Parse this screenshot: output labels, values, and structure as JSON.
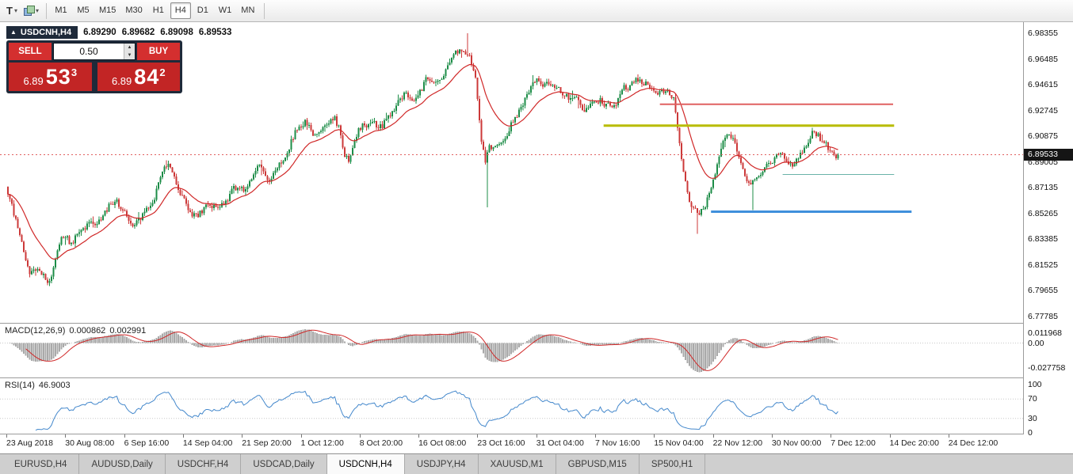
{
  "toolbar": {
    "templates_icon": "T",
    "caret_icon": "▾",
    "timeframes": [
      "M1",
      "M5",
      "M15",
      "M30",
      "H1",
      "H4",
      "D1",
      "W1",
      "MN"
    ],
    "active_timeframe": "H4"
  },
  "chart_header": {
    "collapse_icon": "▲",
    "symbol": "USDCNH,H4",
    "open": "6.89290",
    "high": "6.89682",
    "low": "6.89098",
    "close": "6.89533"
  },
  "trade_panel": {
    "sell_label": "SELL",
    "buy_label": "BUY",
    "volume": "0.50",
    "volume_up_icon": "▲",
    "volume_down_icon": "▼",
    "sell_price": {
      "small": "6.89",
      "big": "53",
      "sup": "3"
    },
    "buy_price": {
      "small": "6.89",
      "big": "84",
      "sup": "2"
    }
  },
  "price_axis": {
    "labels": [
      "6.98355",
      "6.96485",
      "6.94615",
      "6.92745",
      "6.90875",
      "6.89005",
      "6.87135",
      "6.85265",
      "6.83385",
      "6.81525",
      "6.79655",
      "6.77785"
    ],
    "current": "6.89533"
  },
  "macd_panel": {
    "label": "MACD(12,26,9)",
    "value_main": "0.000862",
    "value_signal": "0.002991",
    "axis_labels": [
      "0.011968",
      "0.00",
      "-0.027758"
    ]
  },
  "rsi_panel": {
    "label": "RSI(14)",
    "value": "46.9003",
    "axis_labels": [
      "100",
      "70",
      "30",
      "0"
    ]
  },
  "time_axis": [
    "23 Aug 2018",
    "30 Aug 08:00",
    "6 Sep 16:00",
    "14 Sep 04:00",
    "21 Sep 20:00",
    "1 Oct 12:00",
    "8 Oct 20:00",
    "16 Oct 08:00",
    "23 Oct 16:00",
    "31 Oct 04:00",
    "7 Nov 16:00",
    "15 Nov 04:00",
    "22 Nov 12:00",
    "30 Nov 00:00",
    "7 Dec 12:00",
    "14 Dec 20:00",
    "24 Dec 12:00"
  ],
  "tabs": [
    "EURUSD,H4",
    "AUDUSD,Daily",
    "USDCHF,H4",
    "USDCAD,Daily",
    "USDCNH,H4",
    "USDJPY,H4",
    "XAUUSD,M1",
    "GBPUSD,M15",
    "SP500,H1"
  ],
  "active_tab": "USDCNH,H4",
  "chart_data": {
    "type": "candlestick",
    "symbol": "USDCNH",
    "timeframe": "H4",
    "ohlc_display": {
      "open": 6.8929,
      "high": 6.89682,
      "low": 6.89098,
      "close": 6.89533
    },
    "bid": 6.89533,
    "ask": 6.89842,
    "price_axis_max": 6.98355,
    "price_axis_min": 6.77785,
    "candle_count": 420,
    "moving_average_period": 21,
    "macd_params": [
      12,
      26,
      9
    ],
    "rsi_period": 14,
    "price_path": [
      [
        0.0,
        6.872
      ],
      [
        0.014,
        6.845
      ],
      [
        0.029,
        6.806
      ],
      [
        0.043,
        6.816
      ],
      [
        0.052,
        6.799
      ],
      [
        0.067,
        6.838
      ],
      [
        0.081,
        6.83
      ],
      [
        0.095,
        6.848
      ],
      [
        0.11,
        6.841
      ],
      [
        0.129,
        6.862
      ],
      [
        0.143,
        6.856
      ],
      [
        0.158,
        6.843
      ],
      [
        0.177,
        6.861
      ],
      [
        0.196,
        6.892
      ],
      [
        0.215,
        6.861
      ],
      [
        0.229,
        6.849
      ],
      [
        0.243,
        6.858
      ],
      [
        0.258,
        6.855
      ],
      [
        0.277,
        6.872
      ],
      [
        0.291,
        6.869
      ],
      [
        0.305,
        6.887
      ],
      [
        0.32,
        6.877
      ],
      [
        0.334,
        6.89
      ],
      [
        0.348,
        6.91
      ],
      [
        0.363,
        6.924
      ],
      [
        0.374,
        6.904
      ],
      [
        0.387,
        6.915
      ],
      [
        0.399,
        6.924
      ],
      [
        0.41,
        6.882
      ],
      [
        0.425,
        6.914
      ],
      [
        0.439,
        6.92
      ],
      [
        0.453,
        6.913
      ],
      [
        0.468,
        6.93
      ],
      [
        0.482,
        6.941
      ],
      [
        0.496,
        6.935
      ],
      [
        0.511,
        6.954
      ],
      [
        0.525,
        6.95
      ],
      [
        0.539,
        6.967
      ],
      [
        0.554,
        6.975
      ],
      [
        0.563,
        6.96
      ],
      [
        0.575,
        6.882
      ],
      [
        0.582,
        6.904
      ],
      [
        0.597,
        6.898
      ],
      [
        0.611,
        6.922
      ],
      [
        0.625,
        6.932
      ],
      [
        0.64,
        6.954
      ],
      [
        0.647,
        6.948
      ],
      [
        0.659,
        6.951
      ],
      [
        0.673,
        6.936
      ],
      [
        0.687,
        6.938
      ],
      [
        0.702,
        6.926
      ],
      [
        0.716,
        6.936
      ],
      [
        0.73,
        6.93
      ],
      [
        0.745,
        6.942
      ],
      [
        0.759,
        6.95
      ],
      [
        0.773,
        6.947
      ],
      [
        0.788,
        6.94
      ],
      [
        0.802,
        6.944
      ],
      [
        0.813,
        6.892
      ],
      [
        0.826,
        6.853
      ],
      [
        0.838,
        6.849
      ],
      [
        0.85,
        6.871
      ],
      [
        0.864,
        6.904
      ],
      [
        0.873,
        6.914
      ],
      [
        0.886,
        6.891
      ],
      [
        0.895,
        6.871
      ],
      [
        0.907,
        6.884
      ],
      [
        0.921,
        6.888
      ],
      [
        0.935,
        6.894
      ],
      [
        0.95,
        6.886
      ],
      [
        0.964,
        6.901
      ],
      [
        0.974,
        6.916
      ],
      [
        0.985,
        6.905
      ],
      [
        1.0,
        6.89533
      ]
    ],
    "wick_events": [
      {
        "f": 0.578,
        "low": 6.857
      },
      {
        "f": 0.554,
        "high": 6.9835
      },
      {
        "f": 0.83,
        "low": 6.838
      },
      {
        "f": 0.897,
        "low": 6.855
      }
    ],
    "hlines": [
      {
        "price": 6.932,
        "x1_frac": 0.645,
        "x2_frac": 0.873,
        "color": "#e06060",
        "width": 2
      },
      {
        "price": 6.9165,
        "x1_frac": 0.59,
        "x2_frac": 0.874,
        "color": "#b8bc00",
        "width": 3
      },
      {
        "price": 6.881,
        "x1_frac": 0.765,
        "x2_frac": 0.874,
        "color": "#6ab2a8",
        "width": 1
      },
      {
        "price": 6.854,
        "x1_frac": 0.695,
        "x2_frac": 0.891,
        "color": "#3f8fdc",
        "width": 3
      }
    ],
    "colors": {
      "up": "#1c8c47",
      "down": "#cc3939",
      "ma": "#d02828",
      "macd_hist": "#a9a9a9",
      "macd_signal": "#d02828",
      "rsi": "#4488cc",
      "bid_line": "#e06060",
      "level_line": "#c8c8c8"
    }
  }
}
